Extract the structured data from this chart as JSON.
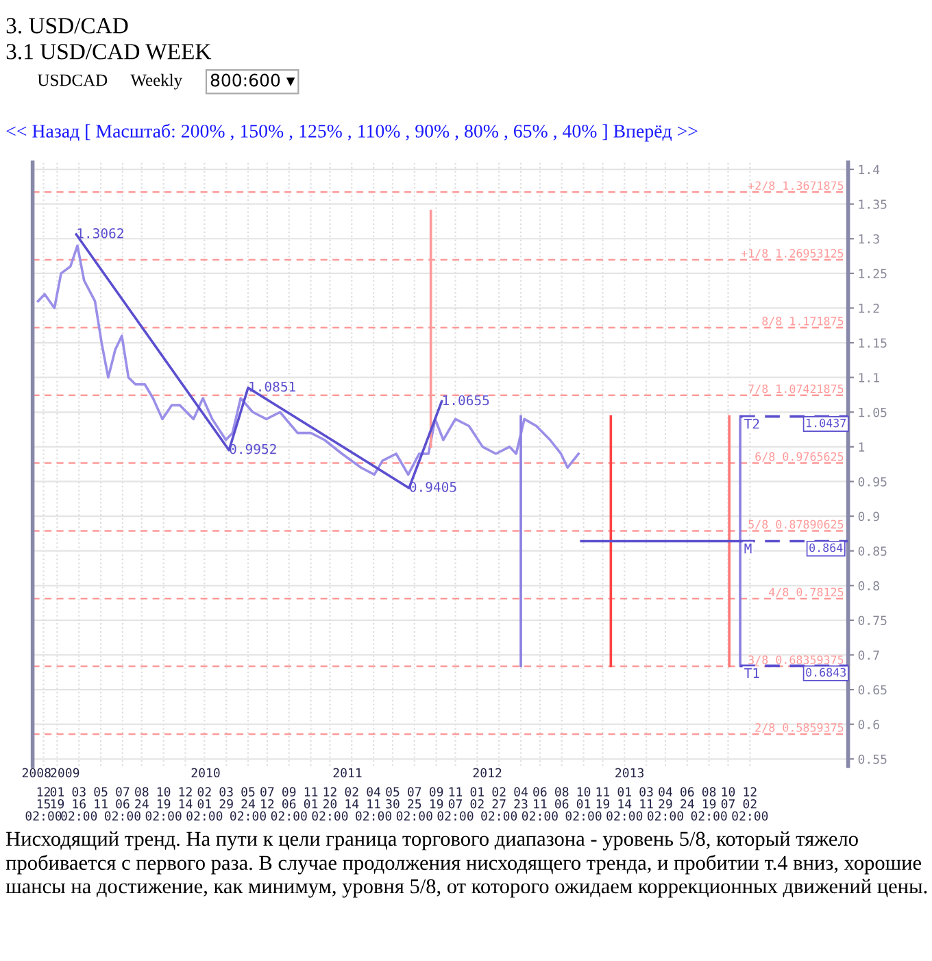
{
  "chart_data": {
    "type": "line",
    "title": "3. USD/CAD",
    "subtitle": "3.1 USD/CAD WEEK",
    "annotations": [
      "USDCAD",
      "Weekly",
      "800:600 ▾",
      "<< Назад [ Масштаб: 200% , 150% , 125% , 110% , 90% , 80% , 65% , 40% ] Вперёд >>",
      {
        "text": "T2",
        "x": "2013-11-07",
        "y": 1.0437
      },
      {
        "text": "M",
        "x": "2013-11-07",
        "y": 0.864
      },
      {
        "text": "T1",
        "x": "2013-11-07",
        "y": 0.6843
      },
      {
        "text": "1.0437",
        "x": "2014-06-15",
        "y": 1.0437
      },
      {
        "text": "0.864",
        "x": "2014-06-15",
        "y": 0.864
      },
      {
        "text": "0.6843",
        "x": "2014-06-15",
        "y": 0.6843
      },
      "Нисходящий тренд. На пути к цели граница торгового диапазона - уровень 5/8, который тяжело пробивается с первого раза. В случае продолжения нисходящего тренда, и пробитии т.4 вниз, хорошие шансы на достижение, как минимум, уровня 5/8, от которого ожидаем коррекционных движений цены."
    ],
    "xlim": [
      "2008-11-17",
      "2014-08-11"
    ],
    "xticks": [
      {
        "value": "2008-12-15",
        "label": "12\n15\n02:00"
      },
      {
        "value": "2009-01-19",
        "label": "01\n19"
      },
      {
        "value": "2009-03-16",
        "label": "03\n16\n02:00"
      },
      {
        "value": "2009-05-11",
        "label": "05\n11"
      },
      {
        "value": "2009-07-06",
        "label": "07\n06\n02:00"
      },
      {
        "value": "2009-08-24",
        "label": "08\n24"
      },
      {
        "value": "2009-10-19",
        "label": "10\n19\n02:00"
      },
      {
        "value": "2009-12-14",
        "label": "12\n14"
      },
      {
        "value": "2010-02-01",
        "label": "02\n01\n02:00"
      },
      {
        "value": "2010-03-29",
        "label": "03\n29"
      },
      {
        "value": "2010-05-24",
        "label": "05\n24\n02:00"
      },
      {
        "value": "2010-07-12",
        "label": "07\n12"
      },
      {
        "value": "2010-09-06",
        "label": "09\n06\n02:00"
      },
      {
        "value": "2010-11-01",
        "label": "11\n01"
      },
      {
        "value": "2010-12-20",
        "label": "12\n20\n02:00"
      },
      {
        "value": "2011-02-14",
        "label": "02\n14"
      },
      {
        "value": "2011-04-11",
        "label": "04\n11\n02:00"
      },
      {
        "value": "2011-05-30",
        "label": "05\n30"
      },
      {
        "value": "2011-07-25",
        "label": "07\n25\n02:00"
      },
      {
        "value": "2011-09-19",
        "label": "09\n19"
      },
      {
        "value": "2011-11-07",
        "label": "11\n07\n02:00"
      },
      {
        "value": "2012-01-02",
        "label": "01\n02"
      },
      {
        "value": "2012-02-27",
        "label": "02\n27\n02:00"
      },
      {
        "value": "2012-04-23",
        "label": "04\n23"
      },
      {
        "value": "2012-06-11",
        "label": "06\n11\n02:00"
      },
      {
        "value": "2012-08-06",
        "label": "08\n06"
      },
      {
        "value": "2012-10-01",
        "label": "10\n01\n02:00"
      },
      {
        "value": "2012-11-19",
        "label": "11\n19"
      },
      {
        "value": "2013-01-14",
        "label": "01\n14\n02:00"
      },
      {
        "value": "2013-03-11",
        "label": "03\n11"
      },
      {
        "value": "2013-04-29",
        "label": "04\n29\n02:00"
      },
      {
        "value": "2013-06-24",
        "label": "06\n24"
      },
      {
        "value": "2013-08-19",
        "label": "08\n19\n02:00"
      },
      {
        "value": "2013-10-07",
        "label": "10\n07"
      },
      {
        "value": "2013-12-02",
        "label": "12\n02\n02:00"
      }
    ],
    "x2lim": [
      "2008-11-17",
      "2014-08-11"
    ],
    "x2ticks": [
      {
        "value": "2008-11-27",
        "label": "2008"
      },
      {
        "value": "2009-02-08",
        "label": "2009"
      },
      {
        "value": "2010-02-04",
        "label": "2010"
      },
      {
        "value": "2011-02-03",
        "label": "2011"
      },
      {
        "value": "2012-01-28",
        "label": "2012"
      },
      {
        "value": "2013-01-27",
        "label": "2013"
      }
    ],
    "ylim": [
      0.54,
      1.41
    ],
    "yticks": [
      0.55,
      0.6,
      0.65,
      0.7,
      0.75,
      0.8,
      0.85,
      0.9,
      0.95,
      1,
      1.05,
      1.1,
      1.15,
      1.2,
      1.25,
      1.3,
      1.35,
      1.4
    ],
    "grid": true,
    "ref_lines": [
      {
        "axis": "y",
        "value": 1.3671875,
        "label": "+2/8 1.3671875",
        "color": "#ff9999",
        "line_style": "dashed"
      },
      {
        "axis": "y",
        "value": 1.26953125,
        "label": "+1/8 1.26953125",
        "color": "#ff9999",
        "line_style": "dashed"
      },
      {
        "axis": "y",
        "value": 1.171875,
        "label": "8/8 1.171875",
        "color": "#ff9999",
        "line_style": "dashed"
      },
      {
        "axis": "y",
        "value": 1.07421875,
        "label": "7/8 1.07421875",
        "color": "#ff9999",
        "line_style": "dashed"
      },
      {
        "axis": "y",
        "value": 0.9765625,
        "label": "6/8 0.9765625",
        "color": "#ff9999",
        "line_style": "dashed"
      },
      {
        "axis": "y",
        "value": 0.87890625,
        "label": "5/8 0.87890625",
        "color": "#ff9999",
        "line_style": "dashed"
      },
      {
        "axis": "y",
        "value": 0.78125,
        "label": "4/8 0.78125",
        "color": "#ff9999",
        "line_style": "dashed"
      },
      {
        "axis": "y",
        "value": 0.68359375,
        "label": "3/8 0.68359375",
        "color": "#ff9999",
        "line_style": "dashed"
      },
      {
        "axis": "y",
        "value": 0.5859375,
        "label": "2/8 0.5859375",
        "color": "#ff9999",
        "line_style": "dashed"
      }
    ],
    "series": [
      {
        "color": "#9a8fe8",
        "x": [
          "2008-12-01",
          "2008-12-18",
          "2009-01-12",
          "2009-01-29",
          "2009-02-22",
          "2009-03-12",
          "2009-03-29",
          "2009-04-26",
          "2009-05-13",
          "2009-05-30",
          "2009-06-17",
          "2009-07-04",
          "2009-07-21",
          "2009-08-08",
          "2009-09-01",
          "2009-09-22",
          "2009-10-16",
          "2009-11-09",
          "2009-11-30",
          "2010-01-04",
          "2010-01-28",
          "2010-02-21",
          "2010-03-28",
          "2010-04-14",
          "2010-05-05",
          "2010-06-05",
          "2010-07-10",
          "2010-08-14",
          "2010-09-28",
          "2010-11-01",
          "2010-12-06",
          "2011-01-20",
          "2011-03-10",
          "2011-04-13",
          "2011-05-04",
          "2011-06-08",
          "2011-07-09",
          "2011-08-06",
          "2011-08-30",
          "2011-09-16",
          "2011-10-07",
          "2011-11-07",
          "2011-12-12",
          "2012-01-16",
          "2012-02-19",
          "2012-03-25",
          "2012-04-11",
          "2012-05-02",
          "2012-06-02",
          "2012-07-07",
          "2012-08-04",
          "2012-08-21",
          "2012-09-18"
        ],
        "values": [
          1.21,
          1.22,
          1.2,
          1.25,
          1.26,
          1.29,
          1.24,
          1.21,
          1.15,
          1.1,
          1.14,
          1.16,
          1.1,
          1.09,
          1.09,
          1.07,
          1.04,
          1.06,
          1.06,
          1.04,
          1.07,
          1.04,
          1.01,
          1.02,
          1.07,
          1.05,
          1.04,
          1.05,
          1.02,
          1.02,
          1.01,
          0.99,
          0.97,
          0.96,
          0.98,
          0.99,
          0.96,
          0.99,
          0.99,
          1.04,
          1.01,
          1.04,
          1.03,
          1.0,
          0.99,
          1.0,
          0.99,
          1.04,
          1.03,
          1.01,
          0.99,
          0.97,
          0.99
        ]
      },
      {
        "color": "#ff9999",
        "x": [
          "2011-09-05",
          "2011-09-05"
        ],
        "values": [
          1.34,
          1.0
        ]
      },
      {
        "color": "#5b4fcf",
        "x": [
          "2009-03-09",
          "2010-04-05",
          "2010-05-24",
          "2011-07-11",
          "2011-10-03"
        ],
        "values": [
          1.3062,
          0.9952,
          1.0851,
          0.9405,
          1.0655
        ],
        "value_labels": [
          "1.3062",
          "0.9952",
          "1.0851",
          "0.9405",
          "1.0655"
        ]
      },
      {
        "color": "#8a7fe0",
        "x": [
          "2012-04-23",
          "2012-04-23"
        ],
        "values": [
          1.0437,
          0.6843
        ]
      },
      {
        "color": "#ff4444",
        "x": [
          "2012-12-10",
          "2012-12-10"
        ],
        "values": [
          1.0437,
          0.6843
        ]
      },
      {
        "color": "#ff7777",
        "x": [
          "2013-10-10",
          "2013-10-10"
        ],
        "values": [
          1.0437,
          0.6843
        ]
      },
      {
        "color": "#8a7fe0",
        "x": [
          "2013-11-07",
          "2013-11-07"
        ],
        "values": [
          1.0437,
          0.6843
        ]
      },
      {
        "color": "#5b4fcf",
        "x": [
          "2012-09-25",
          "2013-11-07"
        ],
        "values": [
          0.864,
          0.864
        ]
      },
      {
        "color": "#5b4fcf",
        "line_style": "dashed",
        "x": [
          "2013-11-07",
          "2014-08-11"
        ],
        "values": [
          1.0437,
          1.0437
        ]
      },
      {
        "color": "#5b4fcf",
        "line_style": "dashed",
        "x": [
          "2013-11-07",
          "2014-08-11"
        ],
        "values": [
          0.864,
          0.864
        ]
      },
      {
        "color": "#5b4fcf",
        "line_style": "dashed",
        "x": [
          "2013-11-07",
          "2014-08-11"
        ],
        "values": [
          0.6843,
          0.6843
        ]
      }
    ]
  }
}
